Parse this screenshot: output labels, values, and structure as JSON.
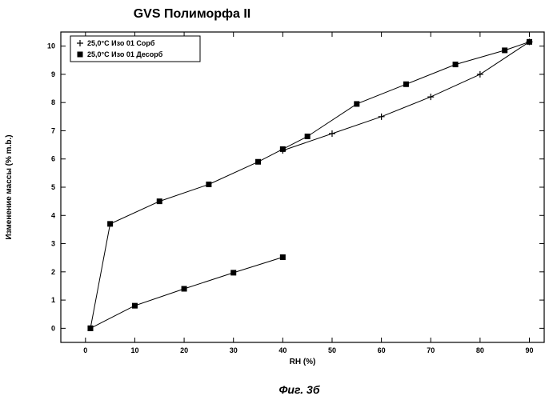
{
  "caption": "Фиг. 3б",
  "chart_data": {
    "type": "line",
    "title": "GVS Полиморфа II",
    "xlabel": "RH (%)",
    "ylabel": "Изменение массы (% m.b.)",
    "xlim": [
      -5,
      93
    ],
    "ylim": [
      -0.5,
      10.5
    ],
    "xticks": [
      0,
      10,
      20,
      30,
      40,
      50,
      60,
      70,
      80,
      90
    ],
    "yticks": [
      0,
      1,
      2,
      3,
      4,
      5,
      6,
      7,
      8,
      9,
      10
    ],
    "legend_position": "top-left",
    "grid": false,
    "series": [
      {
        "name": "25,0°C Изо 01 Сорб",
        "marker": "plus",
        "x": [
          40,
          50,
          60,
          70,
          80,
          90
        ],
        "y": [
          6.3,
          6.9,
          7.5,
          8.2,
          9.0,
          10.15
        ]
      },
      {
        "name": "25,0°C Изо 01 Десорб",
        "marker": "square",
        "x": [
          90,
          85,
          75,
          65,
          55,
          45,
          40,
          35,
          25,
          15,
          5,
          1
        ],
        "y": [
          10.15,
          9.85,
          9.35,
          8.65,
          7.95,
          6.8,
          6.35,
          5.9,
          5.1,
          4.5,
          3.7,
          0.0
        ]
      },
      {
        "name": "",
        "marker": "square",
        "x": [
          1,
          10,
          20,
          30,
          40
        ],
        "y": [
          0.0,
          0.8,
          1.4,
          1.97,
          2.52
        ]
      }
    ]
  }
}
